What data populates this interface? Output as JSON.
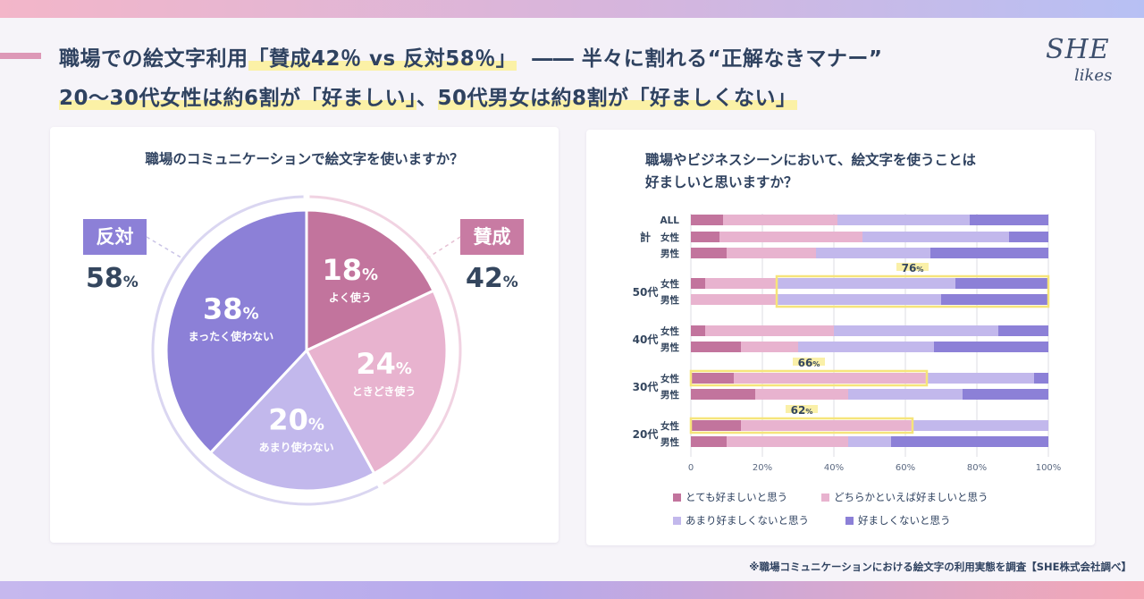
{
  "header": {
    "title_line1_a": "職場での絵文字利用",
    "title_line1_hl": "「賛成42％ vs 反対58％」",
    "title_line1_b": "――  半々に割れる“正解なきマナー”",
    "title_line2_hl1": "20〜30代女性は約6割が「好ましい」",
    "title_line2_mid": "、",
    "title_line2_hl2": "50代男女は約8割が「好ましくない」"
  },
  "logo": {
    "line1": "SHE",
    "line2": "likes"
  },
  "colors": {
    "often": "#c2749d",
    "sometimes": "#e8b3cf",
    "rarely": "#c2b8ec",
    "never": "#8c80d7",
    "highlight": "#f6e47a"
  },
  "left_panel": {
    "title": "職場のコミュニケーションで絵文字を使いますか？",
    "against_label": "反対",
    "against_value": "58",
    "for_label": "賛成",
    "for_value": "42",
    "percent_sign": "%"
  },
  "right_panel": {
    "title_line1": "職場やビジネスシーンにおいて、絵文字を使うことは",
    "title_line2": "好ましいと思いますか？"
  },
  "footnote": "※職場コミュニケーションにおける絵文字の利用実態を調査【SHE株式会社調べ】",
  "chart_data": [
    {
      "type": "pie",
      "title": "職場のコミュニケーションで絵文字を使いますか？",
      "slices": [
        {
          "label": "よく使う",
          "value": 18
        },
        {
          "label": "ときどき使う",
          "value": 24
        },
        {
          "label": "あまり使わない",
          "value": 20
        },
        {
          "label": "まったく使わない",
          "value": 38
        }
      ],
      "groups": [
        {
          "label": "賛成",
          "value": 42
        },
        {
          "label": "反対",
          "value": 58
        }
      ]
    },
    {
      "type": "bar",
      "orientation": "horizontal",
      "stacked": true,
      "title": "職場やビジネスシーンにおいて、絵文字を使うことは好ましいと思いますか？",
      "rows": [
        {
          "group": "計",
          "label": "ALL"
        },
        {
          "group": "計",
          "label": "女性"
        },
        {
          "group": "計",
          "label": "男性"
        },
        {
          "group": "50代",
          "label": "女性"
        },
        {
          "group": "50代",
          "label": "男性"
        },
        {
          "group": "40代",
          "label": "女性"
        },
        {
          "group": "40代",
          "label": "男性"
        },
        {
          "group": "30代",
          "label": "女性"
        },
        {
          "group": "30代",
          "label": "男性"
        },
        {
          "group": "20代",
          "label": "女性"
        },
        {
          "group": "20代",
          "label": "男性"
        }
      ],
      "series": [
        {
          "name": "とても好ましいと思う",
          "values": [
            9,
            8,
            10,
            4,
            0,
            4,
            14,
            12,
            18,
            14,
            10
          ]
        },
        {
          "name": "どちらかといえば好ましいと思う",
          "values": [
            32,
            40,
            25,
            20,
            24,
            36,
            16,
            54,
            26,
            48,
            34
          ]
        },
        {
          "name": "あまり好ましくないと思う",
          "values": [
            37,
            41,
            32,
            50,
            46,
            46,
            38,
            30,
            32,
            38,
            12
          ]
        },
        {
          "name": "好ましくないと思う",
          "values": [
            22,
            11,
            33,
            26,
            30,
            14,
            32,
            4,
            24,
            0,
            44
          ]
        }
      ],
      "annotations": [
        {
          "text": "76%",
          "rows": [
            "50代 女性",
            "50代 男性"
          ]
        },
        {
          "text": "66%",
          "rows": [
            "30代 女性"
          ]
        },
        {
          "text": "62%",
          "rows": [
            "20代 女性"
          ]
        }
      ],
      "xlim": [
        0,
        100
      ],
      "xticks": [
        "0",
        "20%",
        "40%",
        "60%",
        "80%",
        "100%"
      ],
      "legend_position": "bottom",
      "grid": true
    }
  ]
}
